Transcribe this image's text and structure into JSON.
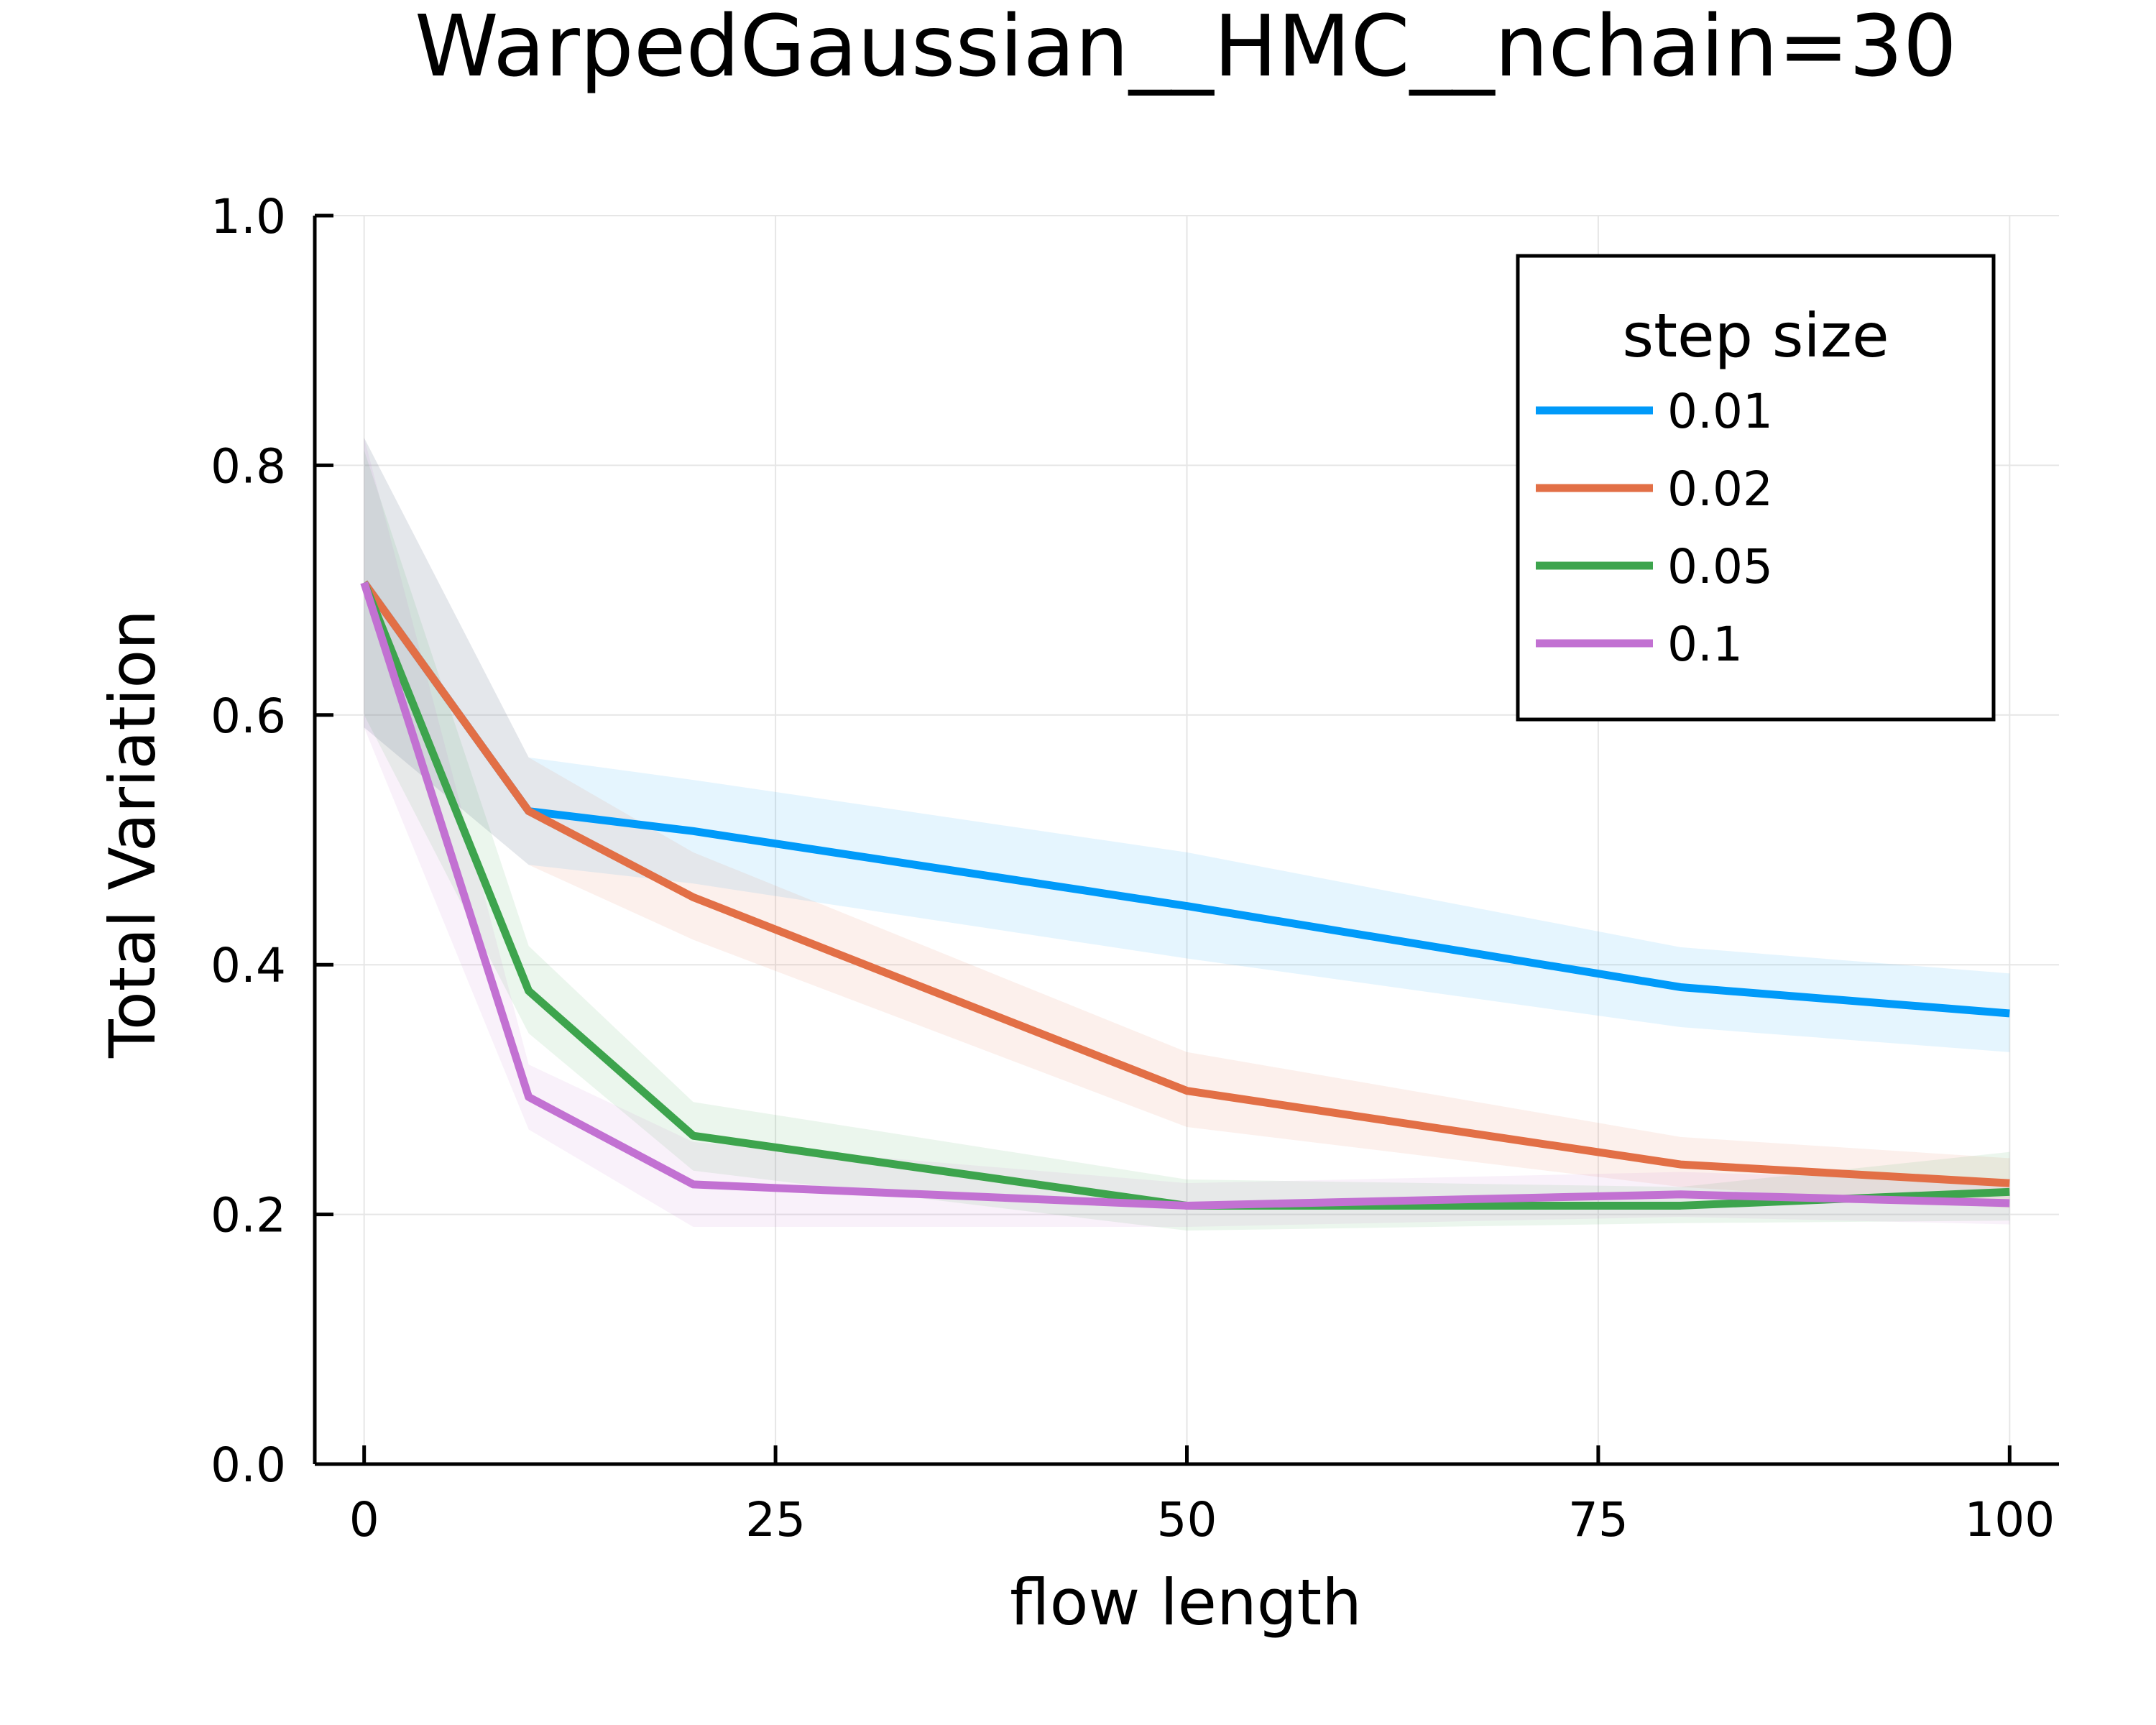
{
  "chart_data": {
    "type": "line",
    "title": "WarpedGaussian__HMC__nchain=30",
    "xlabel": "flow length",
    "ylabel": "Total Variation",
    "xlim": [
      -3,
      103
    ],
    "ylim": [
      0.0,
      1.0
    ],
    "xticks": [
      0,
      25,
      50,
      75,
      100
    ],
    "xtick_labels": [
      "0",
      "25",
      "50",
      "75",
      "100"
    ],
    "yticks": [
      0.0,
      0.2,
      0.4,
      0.6,
      0.8,
      1.0
    ],
    "ytick_labels": [
      "0.0",
      "0.2",
      "0.4",
      "0.6",
      "0.8",
      "1.0"
    ],
    "grid": true,
    "legend": {
      "title": "step size",
      "placement": "top-right"
    },
    "x": [
      0,
      10,
      20,
      50,
      80,
      100
    ],
    "series": [
      {
        "name": "0.01",
        "color": "#009af9",
        "values": [
          0.706,
          0.523,
          0.507,
          0.447,
          0.382,
          0.361
        ],
        "lower": [
          0.59,
          0.48,
          0.465,
          0.405,
          0.35,
          0.33
        ],
        "upper": [
          0.822,
          0.566,
          0.548,
          0.49,
          0.414,
          0.393
        ]
      },
      {
        "name": "0.02",
        "color": "#e26f46",
        "values": [
          0.706,
          0.523,
          0.454,
          0.299,
          0.24,
          0.225
        ],
        "lower": [
          0.59,
          0.48,
          0.42,
          0.27,
          0.222,
          0.205
        ],
        "upper": [
          0.822,
          0.566,
          0.49,
          0.33,
          0.262,
          0.245
        ]
      },
      {
        "name": "0.05",
        "color": "#3da44d",
        "values": [
          0.706,
          0.379,
          0.263,
          0.207,
          0.207,
          0.218
        ],
        "lower": [
          0.6,
          0.345,
          0.235,
          0.187,
          0.193,
          0.195
        ],
        "upper": [
          0.812,
          0.415,
          0.29,
          0.228,
          0.222,
          0.25
        ]
      },
      {
        "name": "0.1",
        "color": "#c271d2",
        "values": [
          0.706,
          0.294,
          0.224,
          0.207,
          0.216,
          0.209
        ],
        "lower": [
          0.59,
          0.268,
          0.19,
          0.19,
          0.198,
          0.192
        ],
        "upper": [
          0.822,
          0.32,
          0.258,
          0.225,
          0.234,
          0.226
        ]
      }
    ]
  }
}
